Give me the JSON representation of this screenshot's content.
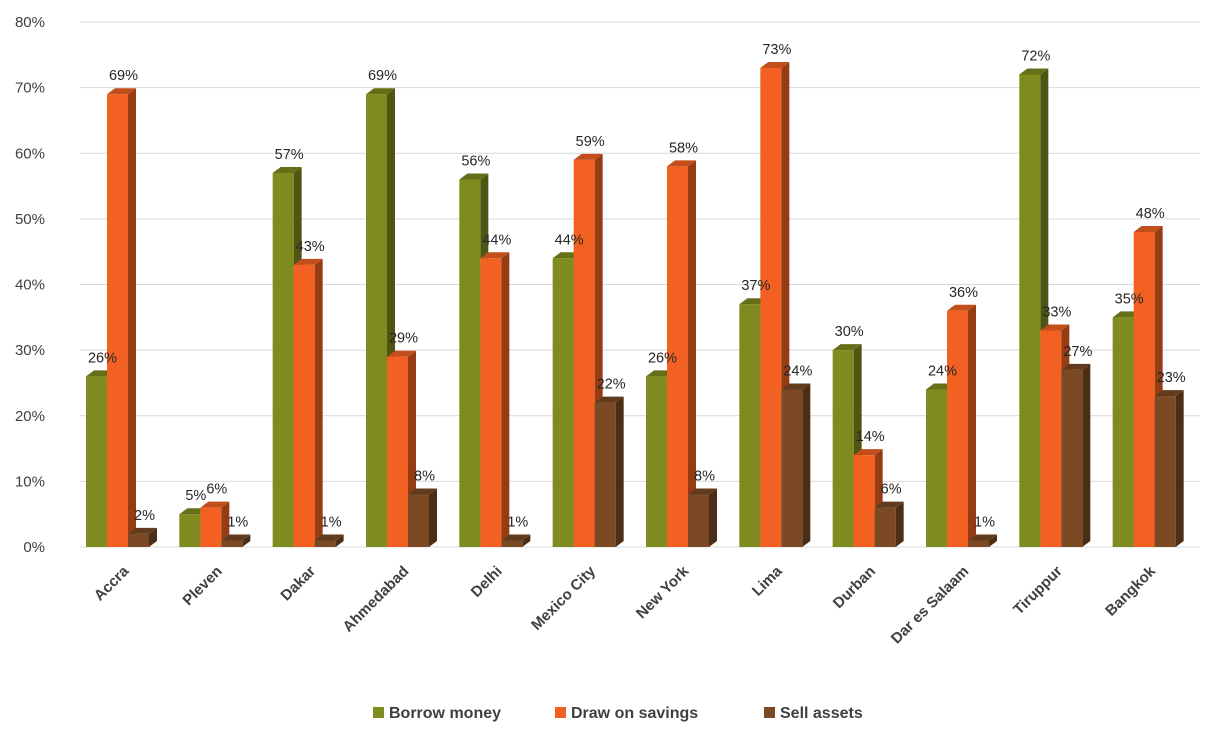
{
  "chart_data": {
    "type": "bar",
    "title": "",
    "xlabel": "",
    "ylabel": "",
    "ylim": [
      0,
      80
    ],
    "y_ticks": [
      0,
      10,
      20,
      30,
      40,
      50,
      60,
      70,
      80
    ],
    "y_tick_format": "{v}%",
    "grid": true,
    "legend_position": "bottom",
    "categories": [
      "Accra",
      "Pleven",
      "Dakar",
      "Ahmedabad",
      "Delhi",
      "Mexico City",
      "New York",
      "Lima",
      "Durban",
      "Dar es Salaam",
      "Tiruppur",
      "Bangkok"
    ],
    "series": [
      {
        "name": "Borrow money",
        "color": "#7f8b1e",
        "values": [
          26,
          5,
          57,
          69,
          56,
          44,
          26,
          37,
          30,
          24,
          72,
          35
        ],
        "labels": [
          "26%",
          "5%",
          "57%",
          "69%",
          "56%",
          "44%",
          "26%",
          "37%",
          "30%",
          "24%",
          "72%",
          "35%"
        ]
      },
      {
        "name": "Draw on savings",
        "color": "#f26122",
        "values": [
          69,
          6,
          43,
          29,
          44,
          59,
          58,
          73,
          14,
          36,
          33,
          48
        ],
        "labels": [
          "69%",
          "6%",
          "43%",
          "29%",
          "44%",
          "59%",
          "58%",
          "73%",
          "14%",
          "36%",
          "33%",
          "48%"
        ]
      },
      {
        "name": "Sell assets",
        "color": "#7b4a25",
        "values": [
          2,
          1,
          1,
          8,
          1,
          22,
          8,
          24,
          6,
          1,
          27,
          23
        ],
        "labels": [
          "2%",
          "1%",
          "1%",
          "8%",
          "1%",
          "22%",
          "8%",
          "24%",
          "6%",
          "1%",
          "27%",
          "23%"
        ]
      }
    ]
  }
}
